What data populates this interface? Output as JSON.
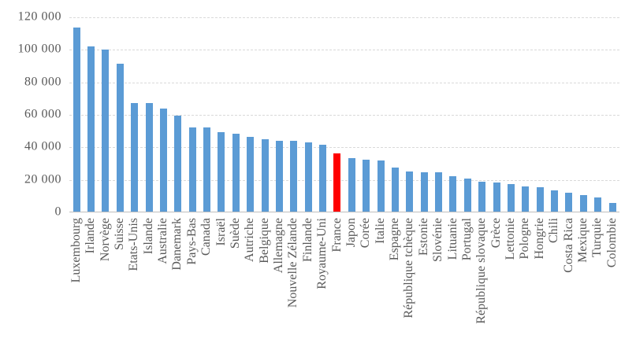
{
  "colors": {
    "bar": "#5B9BD5",
    "highlight": "#FF0000",
    "gridline": "#D9D9D9",
    "axis_line": "#BFBFBF",
    "text": "#595959",
    "background": "#FFFFFF"
  },
  "chart_data": {
    "type": "bar",
    "title": "",
    "xlabel": "",
    "ylabel": "",
    "ylim": [
      0,
      120000
    ],
    "grid": true,
    "legend": false,
    "yticks": [
      0,
      20000,
      40000,
      60000,
      80000,
      100000,
      120000
    ],
    "ytick_labels": [
      "0",
      "20 000",
      "40 000",
      "60 000",
      "80 000",
      "100 000",
      "120 000"
    ],
    "highlight_category": "France",
    "highlight_index": 18,
    "categories": [
      "Luxembourg",
      "Irlande",
      "Norvège",
      "Suisse",
      "Etats-Unis",
      "Islande",
      "Australie",
      "Danemark",
      "Pays-Bas",
      "Canada",
      "Israël",
      "Suède",
      "Autriche",
      "Belgique",
      "Allemagne",
      "Nouvelle Zélande",
      "Finlande",
      "Royaume-Uni",
      "France",
      "Japon",
      "Corée",
      "Italie",
      "Espagne",
      "République tchèque",
      "Estonie",
      "Slovénie",
      "Lituanie",
      "Portugal",
      "République slovaque",
      "Grèce",
      "Lettonie",
      "Pologne",
      "Hongrie",
      "Chili",
      "Costa Rica",
      "Mexique",
      "Turquie",
      "Colombie"
    ],
    "values": [
      113700,
      102100,
      100400,
      91600,
      67400,
      67400,
      63800,
      59500,
      52300,
      52300,
      49600,
      48500,
      46600,
      45200,
      44200,
      44000,
      43200,
      41500,
      36200,
      33400,
      32300,
      32100,
      27800,
      25300,
      24700,
      24600,
      22300,
      20700,
      18900,
      18500,
      17400,
      15800,
      15300,
      13500,
      12300,
      10500,
      9400,
      5900
    ]
  }
}
